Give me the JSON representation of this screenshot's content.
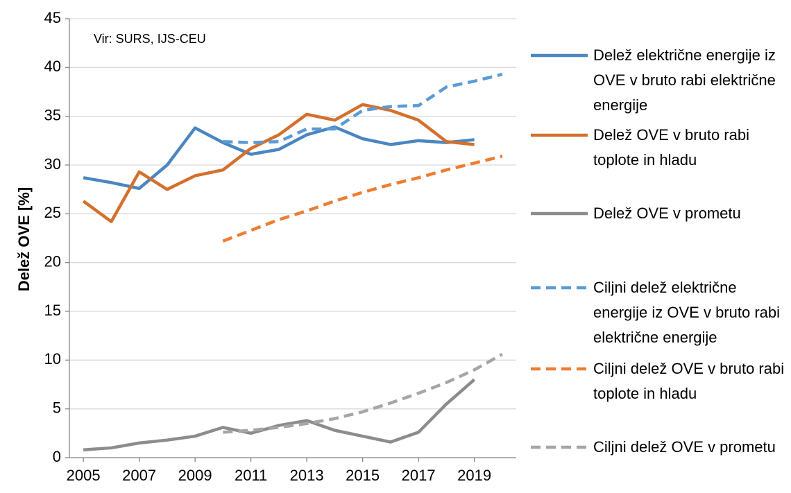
{
  "chart_data": {
    "type": "line",
    "annotation": "Vir: SURS, IJS-CEU",
    "y_label": "Delež OVE [%]",
    "x": [
      2005,
      2006,
      2007,
      2008,
      2009,
      2010,
      2011,
      2012,
      2013,
      2014,
      2015,
      2016,
      2017,
      2018,
      2019,
      2020
    ],
    "xlim": [
      2004.5,
      2020.5
    ],
    "xticks": [
      2005,
      2007,
      2009,
      2011,
      2013,
      2015,
      2017,
      2019
    ],
    "ylim": [
      0,
      45
    ],
    "yticks": [
      0,
      5,
      10,
      15,
      20,
      25,
      30,
      35,
      40,
      45
    ],
    "grid": true,
    "legend": "right",
    "series": [
      {
        "name": "Delež električne energije iz OVE v bruto rabi električne energije",
        "color": "#4a86c0",
        "dashed": false,
        "values": [
          28.7,
          28.2,
          27.6,
          30.0,
          33.8,
          32.3,
          31.1,
          31.6,
          33.1,
          33.9,
          32.7,
          32.1,
          32.5,
          32.3,
          32.6,
          null
        ]
      },
      {
        "name": "Delež OVE v bruto rabi toplote in hladu",
        "color": "#d4702c",
        "dashed": false,
        "values": [
          26.3,
          24.2,
          29.3,
          27.5,
          28.9,
          29.5,
          31.7,
          33.1,
          35.2,
          34.6,
          36.2,
          35.6,
          34.6,
          32.4,
          32.1,
          null
        ]
      },
      {
        "name": "Delež OVE v prometu",
        "color": "#8c8c8c",
        "dashed": false,
        "values": [
          0.8,
          1.0,
          1.5,
          1.8,
          2.2,
          3.1,
          2.5,
          3.3,
          3.8,
          2.8,
          2.2,
          1.6,
          2.6,
          5.5,
          8.0,
          null
        ]
      },
      {
        "name": "Ciljni delež električne energije iz OVE v bruto rabi električne energije",
        "color": "#5b9bd5",
        "dashed": true,
        "values": [
          null,
          null,
          null,
          null,
          null,
          32.4,
          32.3,
          32.4,
          33.7,
          33.7,
          35.6,
          36.0,
          36.1,
          38.0,
          38.6,
          39.3
        ]
      },
      {
        "name": "Ciljni delež OVE v bruto rabi toplote in hladu",
        "color": "#ed7d31",
        "dashed": true,
        "values": [
          null,
          null,
          null,
          null,
          null,
          22.2,
          23.3,
          24.4,
          25.3,
          26.3,
          27.2,
          28.0,
          28.7,
          29.5,
          30.2,
          30.9
        ]
      },
      {
        "name": "Ciljni delež OVE v prometu",
        "color": "#a6a6a6",
        "dashed": true,
        "values": [
          null,
          null,
          null,
          null,
          null,
          2.6,
          2.8,
          3.1,
          3.5,
          4.0,
          4.7,
          5.6,
          6.6,
          7.7,
          9.0,
          10.6
        ]
      }
    ]
  }
}
